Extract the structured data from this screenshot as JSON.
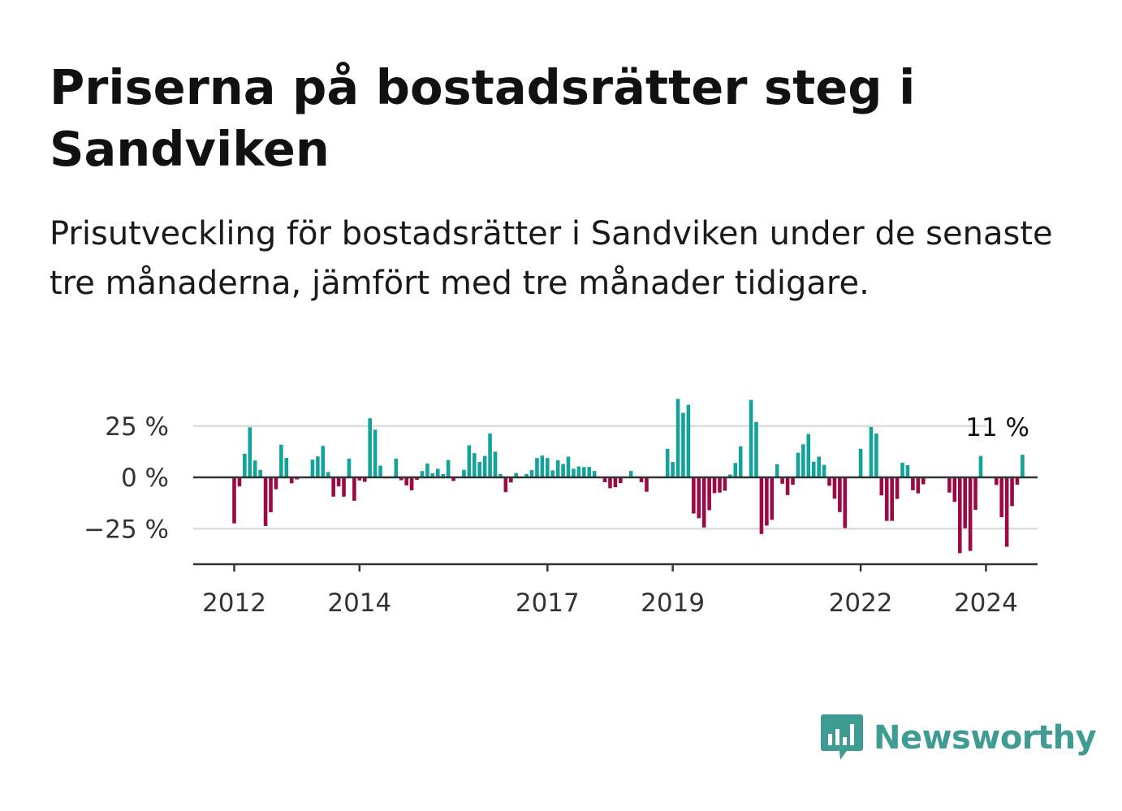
{
  "title": "Priserna på bostadsrätter steg i Sandviken",
  "subtitle": "Prisutveckling för bostadsrätter i Sandviken under de senaste tre månaderna, jämfört med tre månader tidigare.",
  "brand": {
    "name": "Newsworthy",
    "color": "#3f9c93"
  },
  "colors": {
    "positive": "#13a39a",
    "negative": "#9b0a45",
    "axis": "#333333",
    "grid": "#dddddd"
  },
  "chart_data": {
    "type": "bar",
    "x_start": "2012-01",
    "x_tick_labels": [
      "2012",
      "2014",
      "2017",
      "2019",
      "2022",
      "2024"
    ],
    "y_tick_labels": [
      "25 %",
      "0 %",
      "−25 %"
    ],
    "y_ticks": [
      25,
      0,
      -25
    ],
    "ylim": [
      -42,
      38
    ],
    "grid": true,
    "annotation": {
      "text": "11 %",
      "value": 11
    },
    "values": [
      -22.4,
      -4.4,
      11.5,
      24.4,
      8.2,
      3.6,
      -23.7,
      -17,
      -5.8,
      15.9,
      9.5,
      -2.9,
      -1,
      0,
      0,
      8.6,
      10.2,
      15.3,
      2.6,
      -9.4,
      -4.4,
      -9.4,
      9.1,
      -11.4,
      -1.5,
      -2.2,
      28.8,
      23.2,
      5.7,
      -0.5,
      -0.3,
      9.1,
      -1.4,
      -3.9,
      -6.3,
      -1.2,
      3.1,
      6.7,
      2,
      4.2,
      1.6,
      8.4,
      -1.8,
      0,
      3.7,
      15.6,
      11.8,
      7.5,
      10.4,
      21.4,
      12.5,
      1.6,
      -7.2,
      -2.5,
      2.1,
      0.2,
      1.6,
      3.5,
      9.4,
      10.6,
      9.4,
      3.4,
      8.3,
      6.5,
      10.1,
      4.2,
      5.3,
      5,
      5.1,
      3.1,
      0,
      -2.4,
      -5.3,
      -4.8,
      -2.8,
      0,
      3.1,
      0,
      -2.4,
      -7,
      0,
      0,
      0,
      13.9,
      7.5,
      38.2,
      31.4,
      35.3,
      -17.6,
      -19.9,
      -24.4,
      -16,
      -7.7,
      -7.4,
      -6.5,
      1.4,
      7,
      15.1,
      0,
      37.7,
      27,
      -27.6,
      -23.5,
      -20.7,
      6.4,
      -3.1,
      -8.6,
      -3.6,
      12,
      16.1,
      21.1,
      7.6,
      10.1,
      6.1,
      -4.1,
      -10.4,
      -16.9,
      -24.7,
      0,
      0,
      13.9,
      0,
      24.5,
      21.3,
      -8.8,
      -21.2,
      -21.2,
      -10.5,
      7.1,
      5.9,
      -6.3,
      -7.8,
      -3.4,
      0,
      0,
      0,
      0,
      -7.4,
      -11.9,
      -36.9,
      -24.8,
      -35.8,
      -15.8,
      10.4,
      0,
      0,
      -3.7,
      -19.4,
      -33.8,
      -14,
      -3.6,
      11
    ]
  }
}
